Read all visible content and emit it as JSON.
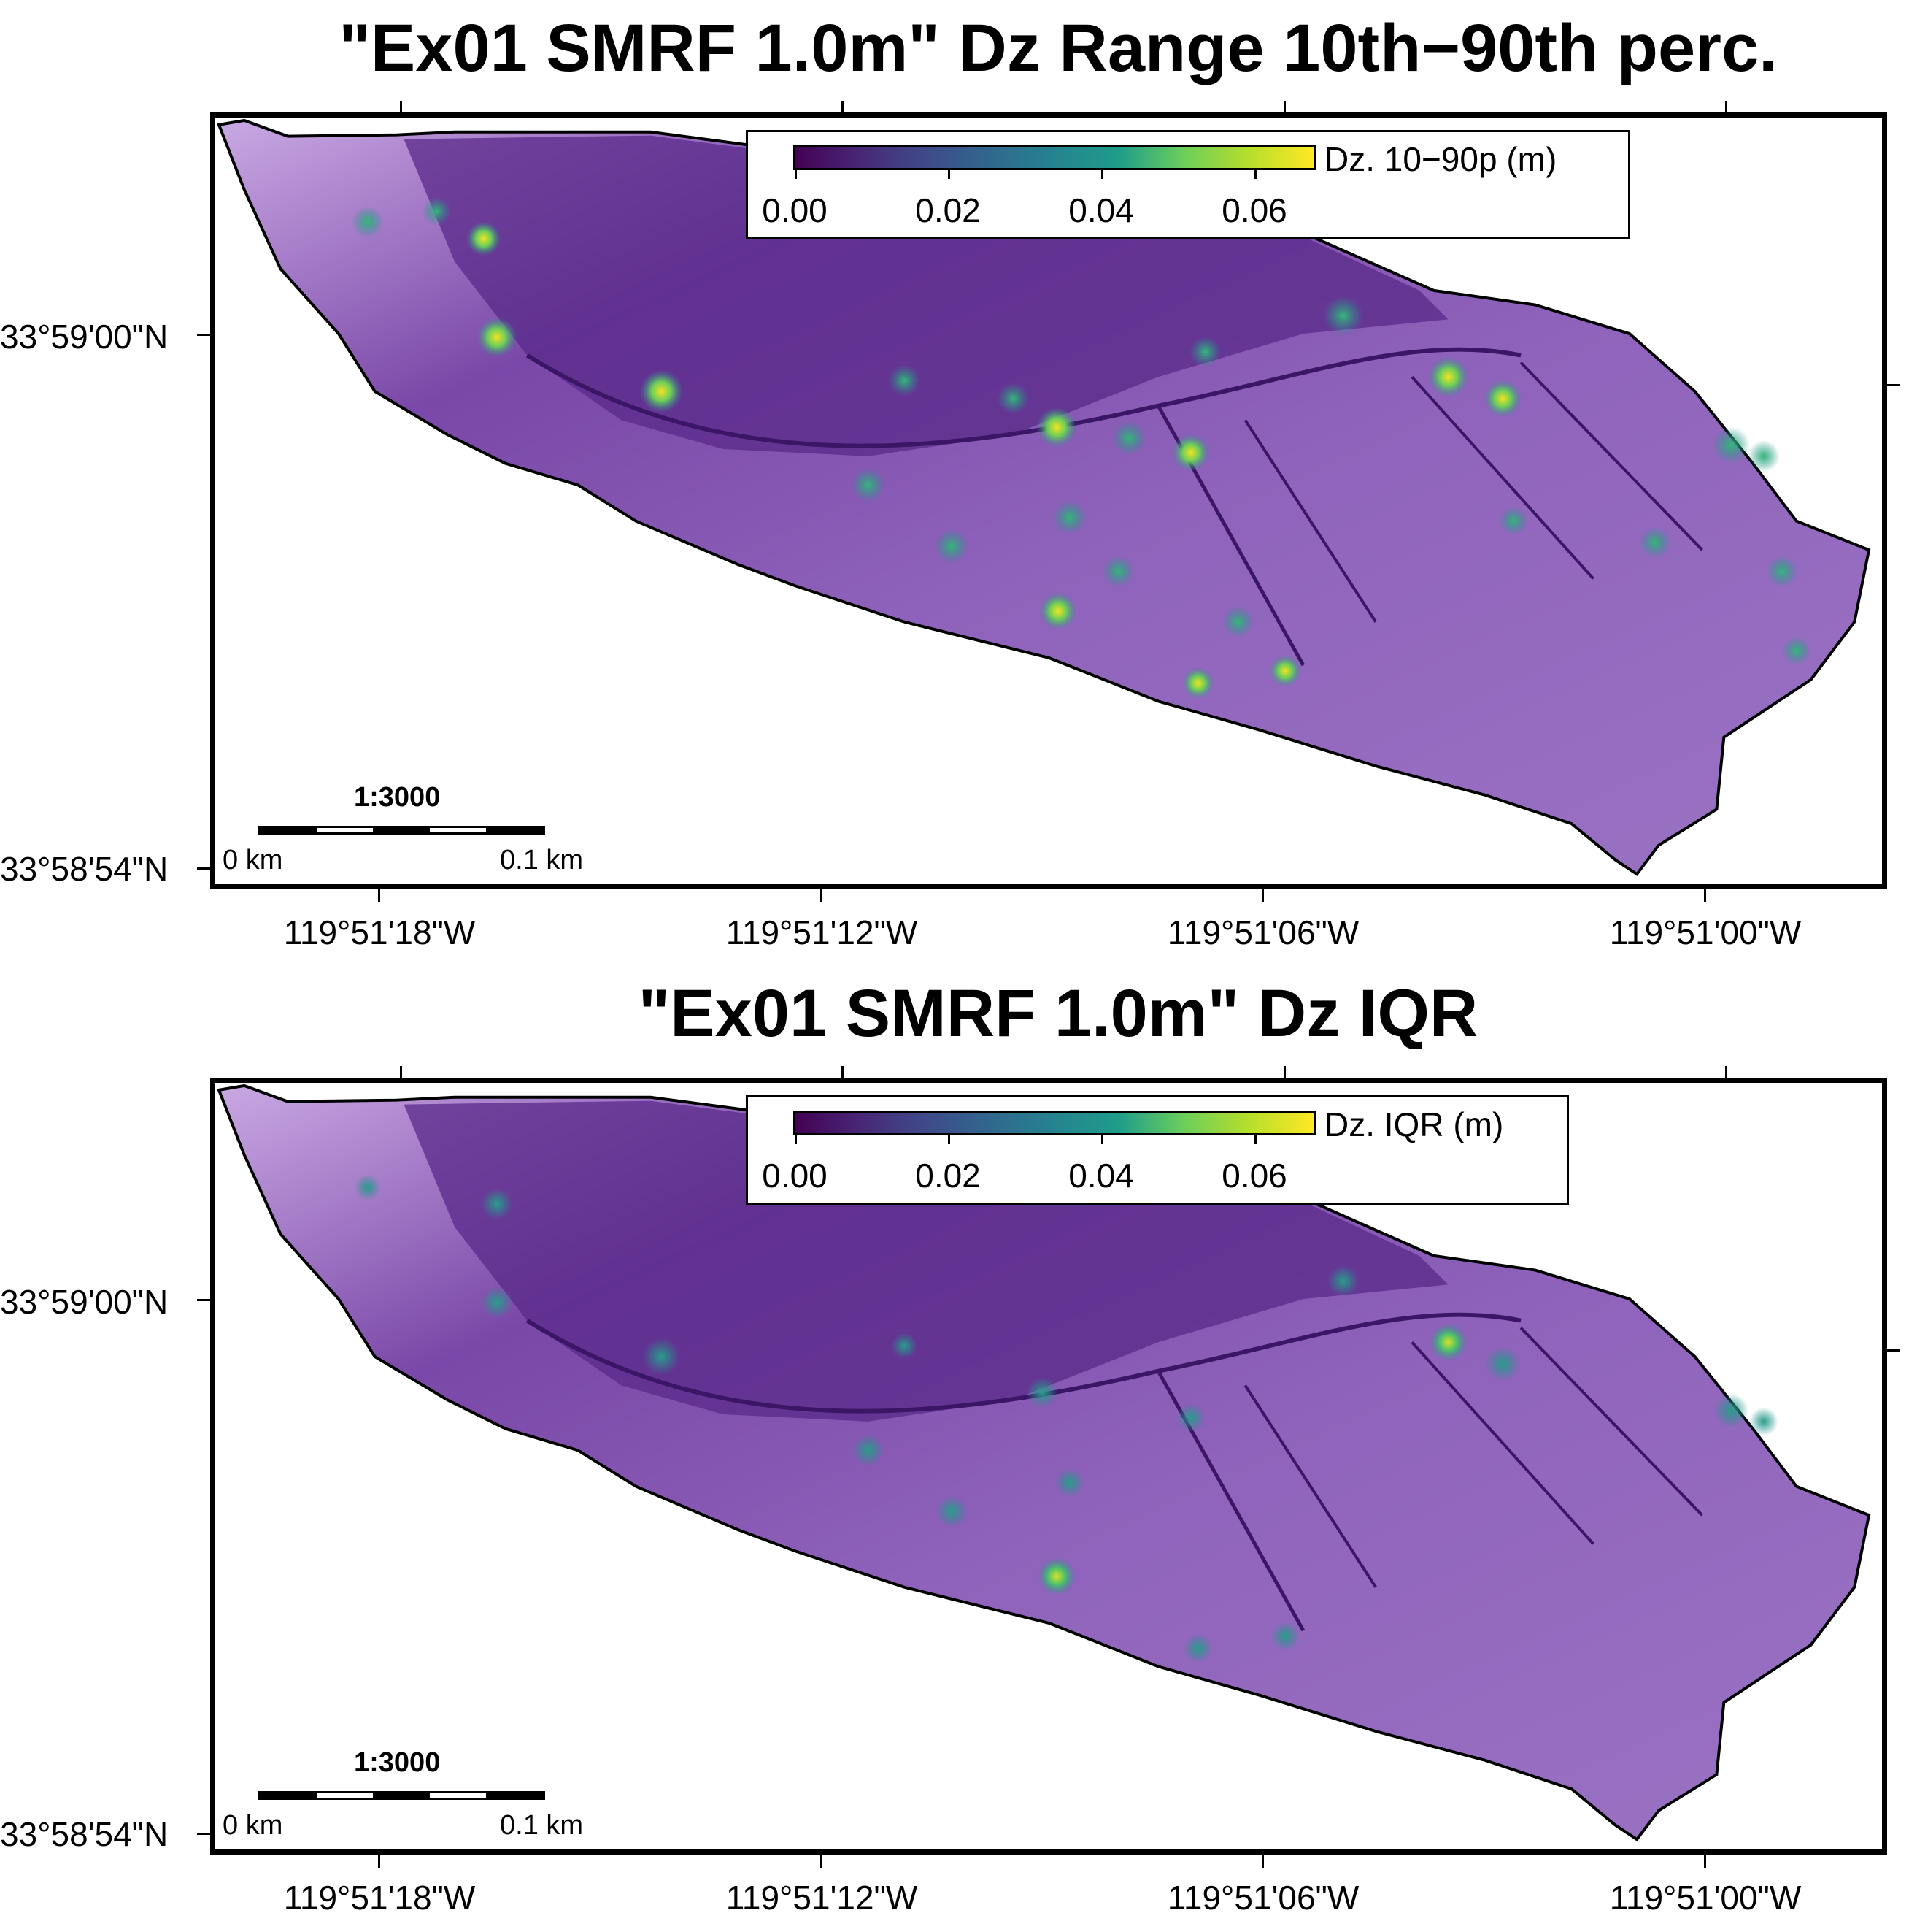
{
  "panels": [
    {
      "title": "\"Ex01 SMRF 1.0m\" Dz Range 10th−90th perc.",
      "colorbar": {
        "label": "Dz. 10−90p (m)",
        "ticks": [
          "0.00",
          "0.02",
          "0.04",
          "0.06"
        ],
        "range": [
          0.0,
          0.068
        ],
        "colormap": "viridis"
      },
      "scale": {
        "ratio": "1:3000",
        "left_label": "0 km",
        "right_label": "0.1 km"
      },
      "lat_labels": [
        "33°59'00\"N",
        "33°58'54\"N"
      ],
      "lon_labels": [
        "119°51'18\"W",
        "119°51'12\"W",
        "119°51'06\"W",
        "119°51'00\"W"
      ]
    },
    {
      "title": "\"Ex01 SMRF 1.0m\" Dz IQR",
      "colorbar": {
        "label": "Dz. IQR (m)",
        "ticks": [
          "0.00",
          "0.02",
          "0.04",
          "0.06"
        ],
        "range": [
          0.0,
          0.068
        ],
        "colormap": "viridis"
      },
      "scale": {
        "ratio": "1:3000",
        "left_label": "0 km",
        "right_label": "0.1 km"
      },
      "lat_labels": [
        "33°59'00\"N",
        "33°58'54\"N"
      ],
      "lon_labels": [
        "119°51'18\"W",
        "119°51'12\"W",
        "119°51'06\"W",
        "119°51'00\"W"
      ]
    }
  ],
  "colors": {
    "land_fill": "#8a5cb4",
    "land_dark": "#4a1a78",
    "land_light": "#c8a4e0",
    "hotspot_low": "#26a69a",
    "hotspot_high": "#e6e020"
  }
}
